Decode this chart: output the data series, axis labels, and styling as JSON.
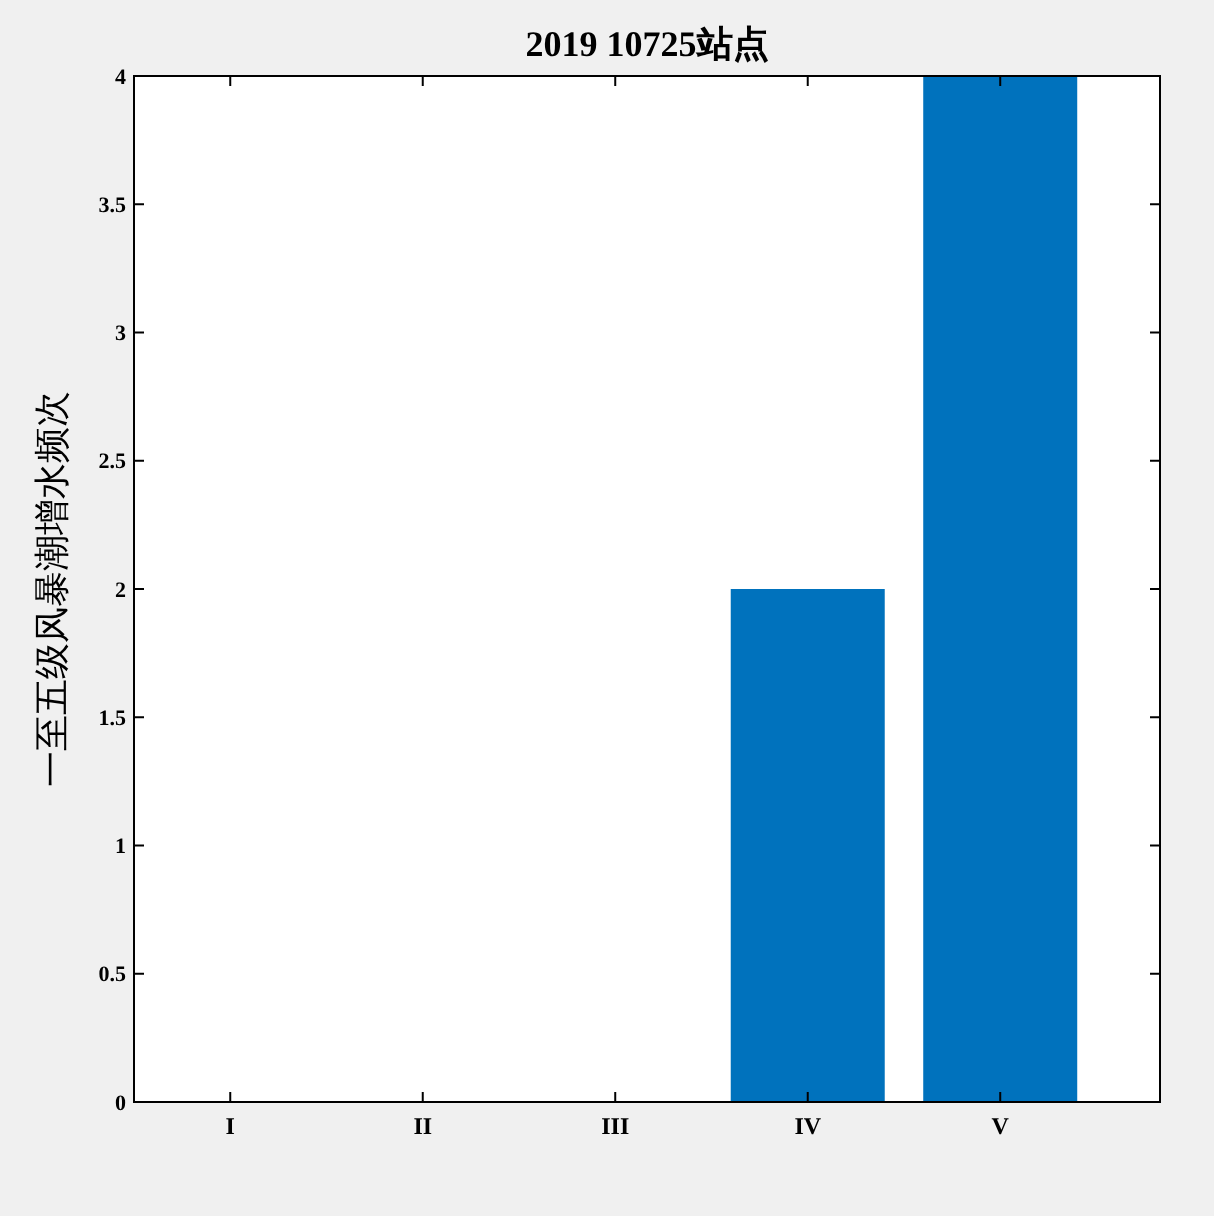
{
  "chart_data": {
    "type": "bar",
    "title": "2019 10725站点",
    "ylabel": "一至五级风暴潮增水频次",
    "categories": [
      "I",
      "II",
      "III",
      "IV",
      "V"
    ],
    "values": [
      0,
      0,
      0,
      2,
      4
    ],
    "color": "#0072bd",
    "ylim": [
      0,
      4
    ],
    "yticks": [
      0,
      0.5,
      1,
      1.5,
      2,
      2.5,
      3,
      3.5,
      4
    ],
    "grid": false
  }
}
